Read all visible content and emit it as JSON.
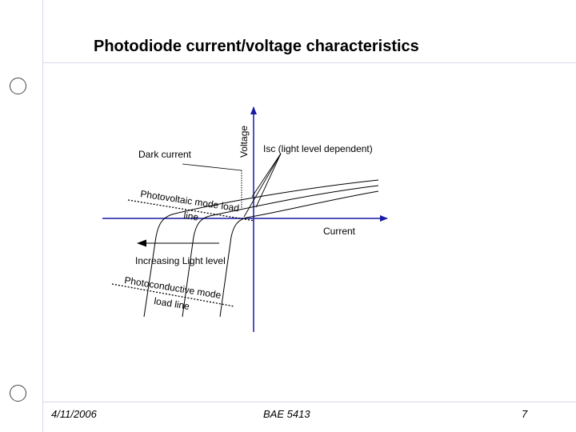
{
  "slide": {
    "title": "Photodiode current/voltage characteristics"
  },
  "diagram": {
    "axis_y_label": "Voltage",
    "axis_x_label": "Current",
    "dark_current_label": "Dark current",
    "isc_label": "Isc (light level dependent)",
    "photovoltaic_label_line1": "Photovoltaic mode load",
    "photovoltaic_label_line2": "line",
    "increasing_light_label": "Increasing Light level",
    "photoconductive_label_line1": "Photoconductive mode",
    "photoconductive_label_line2": "load line",
    "colors": {
      "axis": "#1a1aa6",
      "curve": "#000000",
      "accent_rule": "#d6d6ee"
    }
  },
  "footer": {
    "date": "4/11/2006",
    "course": "BAE 5413",
    "page_number": "7"
  }
}
